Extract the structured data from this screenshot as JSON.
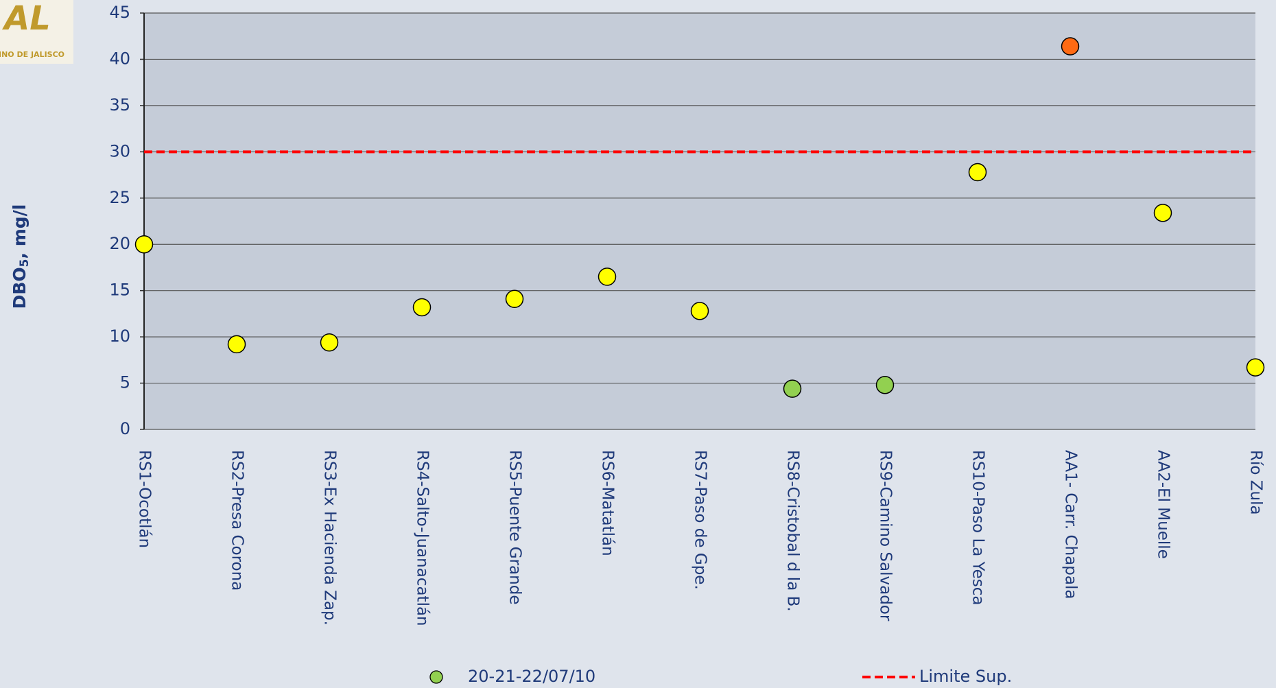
{
  "logo": {
    "mark": "AL",
    "caption": "INO DE JALISCO"
  },
  "chart_data": {
    "type": "scatter",
    "ylabel": {
      "main": "DBO",
      "sub": "5",
      "rest": ", mg/l"
    },
    "categories": [
      "RS1-Ocotlán",
      "RS2-Presa Corona",
      "RS3-Ex Hacienda Zap.",
      "RS4-Salto-Juanacatlán",
      "RS5-Puente Grande",
      "RS6-Matatlán",
      "RS7-Paso de Gpe.",
      "RS8-Cristobal d la B.",
      "RS9-Camino Salvador",
      "RS10-Paso La Yesca",
      "AA1- Carr. Chapala",
      "AA2-El Muelle",
      "Río Zula"
    ],
    "series": [
      {
        "name": "20-21-22/07/10",
        "color": "#92d050",
        "values": [
          20,
          9.2,
          9.4,
          13.2,
          14.1,
          16.5,
          12.8,
          4.4,
          4.8,
          27.8,
          41.4,
          23.4,
          6.7
        ],
        "point_colors": [
          "#ffff00",
          "#ffff00",
          "#ffff00",
          "#ffff00",
          "#ffff00",
          "#ffff00",
          "#ffff00",
          "#92d050",
          "#92d050",
          "#ffff00",
          "#ff6a13",
          "#ffff00",
          "#ffff00"
        ]
      }
    ],
    "reference_lines": [
      {
        "name": "Limite Sup.",
        "value": 30,
        "color": "#ff0000"
      }
    ],
    "ylim": [
      0,
      45
    ],
    "yticks": [
      0,
      5,
      10,
      15,
      20,
      25,
      30,
      35,
      40,
      45
    ],
    "grid": true
  }
}
